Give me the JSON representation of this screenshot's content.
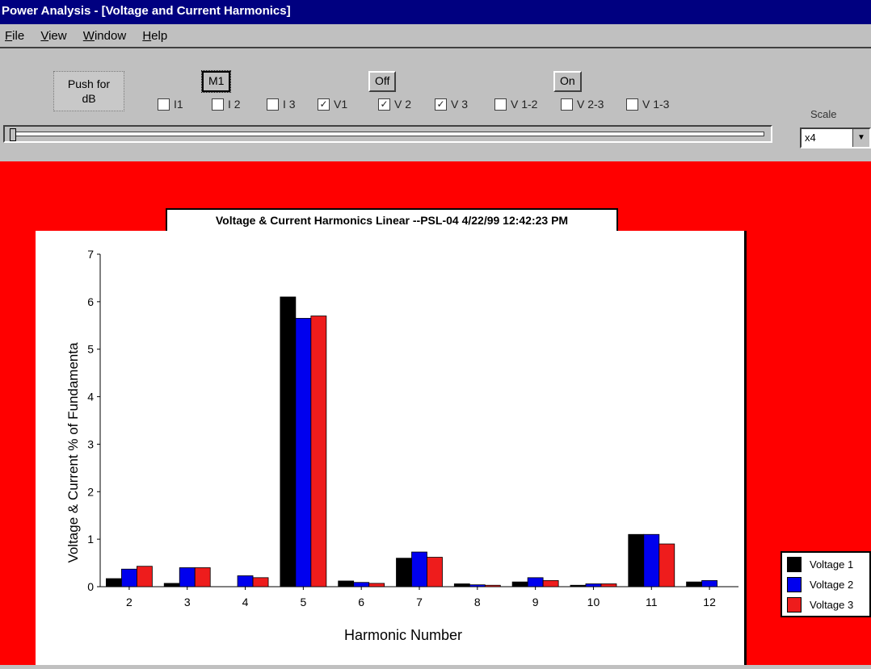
{
  "window": {
    "title": "Power Analysis - [Voltage and Current Harmonics]"
  },
  "menu": [
    "File",
    "View",
    "Window",
    "Help"
  ],
  "toolbar": {
    "push_db": [
      "Push for",
      "dB"
    ],
    "btn_m1": "M1",
    "btn_off": "Off",
    "btn_on": "On",
    "checkboxes": [
      {
        "label": "I1",
        "checked": false
      },
      {
        "label": "I 2",
        "checked": false
      },
      {
        "label": "I 3",
        "checked": false
      },
      {
        "label": "V1",
        "checked": true
      },
      {
        "label": "V 2",
        "checked": true
      },
      {
        "label": "V 3",
        "checked": true
      },
      {
        "label": "V 1-2",
        "checked": false
      },
      {
        "label": "V 2-3",
        "checked": false
      },
      {
        "label": "V 1-3",
        "checked": false
      }
    ],
    "scale_label": "Scale",
    "scale_value": "x4"
  },
  "colors": {
    "series1": "#000000",
    "series2": "#0000ee",
    "series3": "#ee1c1c",
    "background": "#ff0000"
  },
  "chart_data": {
    "type": "bar",
    "title": "Voltage & Current Harmonics  Linear --PSL-04 4/22/99 12:42:23 PM",
    "xlabel": "Harmonic Number",
    "ylabel": "Voltage & Current % of Fundamenta",
    "ylim": [
      0,
      7
    ],
    "yticks": [
      0,
      1,
      2,
      3,
      4,
      5,
      6,
      7
    ],
    "categories": [
      "2",
      "3",
      "4",
      "5",
      "6",
      "7",
      "8",
      "9",
      "10",
      "11",
      "12"
    ],
    "series": [
      {
        "name": "Voltage 1",
        "values": [
          0.17,
          0.07,
          0.0,
          6.1,
          0.12,
          0.6,
          0.06,
          0.1,
          0.03,
          1.1,
          0.1
        ]
      },
      {
        "name": "Voltage 2",
        "values": [
          0.37,
          0.4,
          0.23,
          5.65,
          0.09,
          0.73,
          0.04,
          0.19,
          0.06,
          1.1,
          0.13
        ]
      },
      {
        "name": "Voltage 3",
        "values": [
          0.43,
          0.4,
          0.19,
          5.7,
          0.07,
          0.62,
          0.03,
          0.13,
          0.06,
          0.9,
          0.0
        ]
      }
    ],
    "legend_position": "right"
  }
}
